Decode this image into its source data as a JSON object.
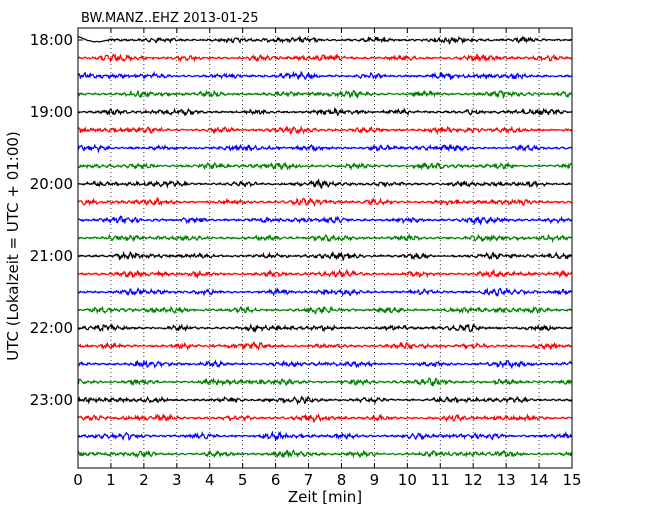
{
  "chart_data": {
    "type": "line",
    "title": "BW.MANZ..EHZ 2013-01-25",
    "xlabel": "Zeit  [min]",
    "ylabel": "UTC (Lokalzeit = UTC + 01:00)",
    "xlim": [
      0,
      15
    ],
    "xticks": [
      "0",
      "1",
      "2",
      "3",
      "4",
      "5",
      "6",
      "7",
      "8",
      "9",
      "10",
      "11",
      "12",
      "13",
      "14",
      "15"
    ],
    "yticks": [
      "18:00",
      "19:00",
      "20:00",
      "21:00",
      "22:00",
      "23:00"
    ],
    "row_interval_min": 15,
    "rows": 24,
    "start_time": "18:00",
    "series_colors": [
      "#000000",
      "#ff0000",
      "#0000ff",
      "#008000"
    ],
    "grid": "vertical dotted",
    "note": ""
  }
}
